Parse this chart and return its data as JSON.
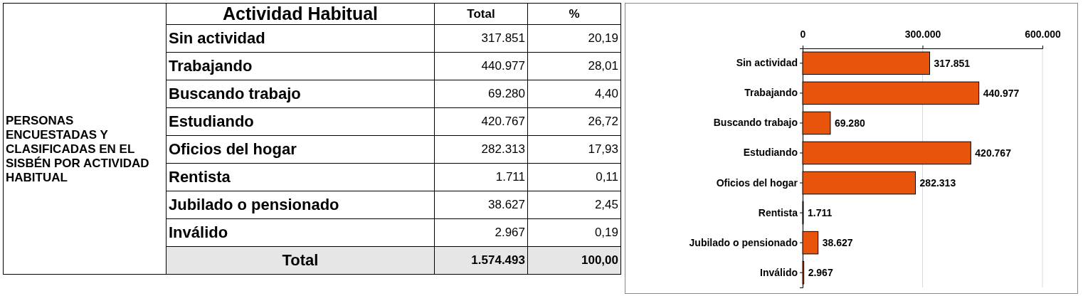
{
  "chart_data": [
    {
      "type": "other",
      "title": "Actividad Habitual",
      "annotations": [
        "PERSONAS ENCUESTADAS Y CLASIFICADAS EN EL SISBÉN POR ACTIVIDAD HABITUAL",
        "Total",
        "%",
        "Sin actividad",
        "317.851",
        "20,19",
        "Trabajando",
        "440.977",
        "28,01",
        "Buscando trabajo",
        "69.280",
        "4,40",
        "Estudiando",
        "420.767",
        "26,72",
        "Oficios del hogar",
        "282.313",
        "17,93",
        "Rentista",
        "1.711",
        "0,11",
        "Jubilado o pensionado",
        "38.627",
        "2,45",
        "Inválido",
        "2.967",
        "0,19",
        "Total",
        "1.574.493",
        "100,00"
      ]
    },
    {
      "type": "bar",
      "orientation": "horizontal",
      "categories": [
        "Sin actividad",
        "Trabajando",
        "Buscando trabajo",
        "Estudiando",
        "Oficios del hogar",
        "Rentista",
        "Jubilado o pensionado",
        "Inválido"
      ],
      "values": [
        317851,
        440977,
        69280,
        420767,
        282313,
        1711,
        38627,
        2967
      ],
      "value_labels": [
        "317.851",
        "440.977",
        "69.280",
        "420.767",
        "282.313",
        "1.711",
        "38.627",
        "2.967"
      ],
      "color": "#e8540c",
      "xlim": [
        0,
        600000
      ],
      "xticks": [
        0,
        {
          "value": 300000,
          "label": "300.000"
        },
        {
          "value": 600000,
          "label": "600.000"
        }
      ],
      "grid": "x"
    }
  ]
}
